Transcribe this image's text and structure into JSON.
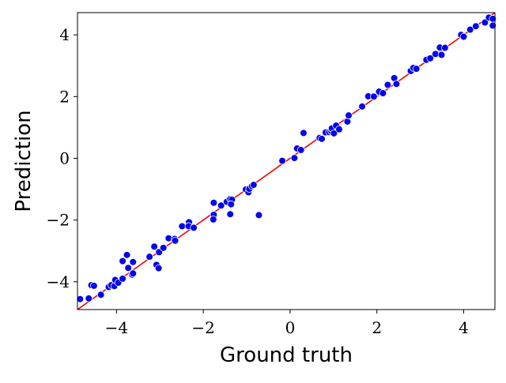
{
  "chart_data": {
    "type": "scatter",
    "xlabel": "Ground truth",
    "ylabel": "Prediction",
    "xlim": [
      -4.9,
      4.72
    ],
    "ylim": [
      -4.9,
      4.72
    ],
    "xticks": [
      {
        "value": -4,
        "label": "−4"
      },
      {
        "value": -2,
        "label": "−2"
      },
      {
        "value": 0,
        "label": "0"
      },
      {
        "value": 2,
        "label": "2"
      },
      {
        "value": 4,
        "label": "4"
      }
    ],
    "yticks": [
      {
        "value": -4,
        "label": "−4"
      },
      {
        "value": -2,
        "label": "−2"
      },
      {
        "value": 0,
        "label": "0"
      },
      {
        "value": 2,
        "label": "2"
      },
      {
        "value": 4,
        "label": "4"
      }
    ],
    "grid": false,
    "legend": "none",
    "point_color": "#0000ff",
    "point_edge_color": "#ffffff",
    "reference_line": {
      "from": [
        -4.9,
        -4.9
      ],
      "to": [
        4.72,
        4.72
      ],
      "color": "#ff0000"
    },
    "points": [
      [
        -4.84,
        -4.56
      ],
      [
        -4.64,
        -4.54
      ],
      [
        -4.58,
        -4.11
      ],
      [
        -4.52,
        -4.13
      ],
      [
        -4.36,
        -4.42
      ],
      [
        -4.18,
        -4.17
      ],
      [
        -4.12,
        -4.11
      ],
      [
        -4.05,
        -4.14
      ],
      [
        -4.03,
        -3.94
      ],
      [
        -3.96,
        -4.03
      ],
      [
        -3.86,
        -3.9
      ],
      [
        -3.86,
        -3.33
      ],
      [
        -3.76,
        -3.13
      ],
      [
        -3.73,
        -3.55
      ],
      [
        -3.62,
        -3.36
      ],
      [
        -3.64,
        -3.77
      ],
      [
        -3.62,
        -3.73
      ],
      [
        -3.24,
        -3.19
      ],
      [
        -3.13,
        -2.86
      ],
      [
        -3.08,
        -3.45
      ],
      [
        -3.03,
        -3.56
      ],
      [
        -3.02,
        -3.04
      ],
      [
        -2.92,
        -2.9
      ],
      [
        -2.8,
        -2.59
      ],
      [
        -2.66,
        -2.61
      ],
      [
        -2.65,
        -2.67
      ],
      [
        -2.49,
        -2.2
      ],
      [
        -2.33,
        -2.07
      ],
      [
        -2.34,
        -2.2
      ],
      [
        -2.22,
        -2.25
      ],
      [
        -1.76,
        -1.83
      ],
      [
        -1.77,
        -1.98
      ],
      [
        -1.76,
        -1.44
      ],
      [
        -1.59,
        -1.53
      ],
      [
        -1.46,
        -1.41
      ],
      [
        -1.38,
        -1.32
      ],
      [
        -1.34,
        -1.34
      ],
      [
        -1.36,
        -1.49
      ],
      [
        -1.38,
        -1.81
      ],
      [
        -1.02,
        -1.01
      ],
      [
        -0.96,
        -1.1
      ],
      [
        -0.94,
        -0.99
      ],
      [
        -0.88,
        -0.9
      ],
      [
        -0.84,
        -0.86
      ],
      [
        -0.72,
        -1.84
      ],
      [
        -0.18,
        -0.08
      ],
      [
        0.1,
        0.01
      ],
      [
        0.16,
        0.32
      ],
      [
        0.25,
        0.27
      ],
      [
        0.31,
        0.82
      ],
      [
        0.68,
        0.66
      ],
      [
        0.73,
        0.63
      ],
      [
        0.82,
        0.84
      ],
      [
        0.9,
        0.85
      ],
      [
        0.95,
        0.88
      ],
      [
        0.96,
        0.97
      ],
      [
        1.01,
        0.81
      ],
      [
        1.06,
        1.06
      ],
      [
        1.13,
        0.94
      ],
      [
        1.32,
        1.19
      ],
      [
        1.35,
        1.39
      ],
      [
        1.66,
        1.68
      ],
      [
        1.8,
        2.01
      ],
      [
        1.93,
        2.0
      ],
      [
        2.05,
        2.16
      ],
      [
        2.14,
        2.11
      ],
      [
        2.25,
        2.38
      ],
      [
        2.4,
        2.6
      ],
      [
        2.45,
        2.41
      ],
      [
        2.78,
        2.83
      ],
      [
        2.84,
        2.93
      ],
      [
        2.91,
        2.9
      ],
      [
        3.14,
        3.19
      ],
      [
        3.23,
        3.24
      ],
      [
        3.35,
        3.38
      ],
      [
        3.45,
        3.59
      ],
      [
        3.49,
        3.35
      ],
      [
        3.57,
        3.58
      ],
      [
        3.94,
        4.0
      ],
      [
        4.0,
        3.94
      ],
      [
        4.15,
        4.17
      ],
      [
        4.28,
        4.28
      ],
      [
        4.49,
        4.4
      ],
      [
        4.58,
        4.56
      ],
      [
        4.67,
        4.52
      ],
      [
        4.67,
        4.3
      ]
    ]
  }
}
